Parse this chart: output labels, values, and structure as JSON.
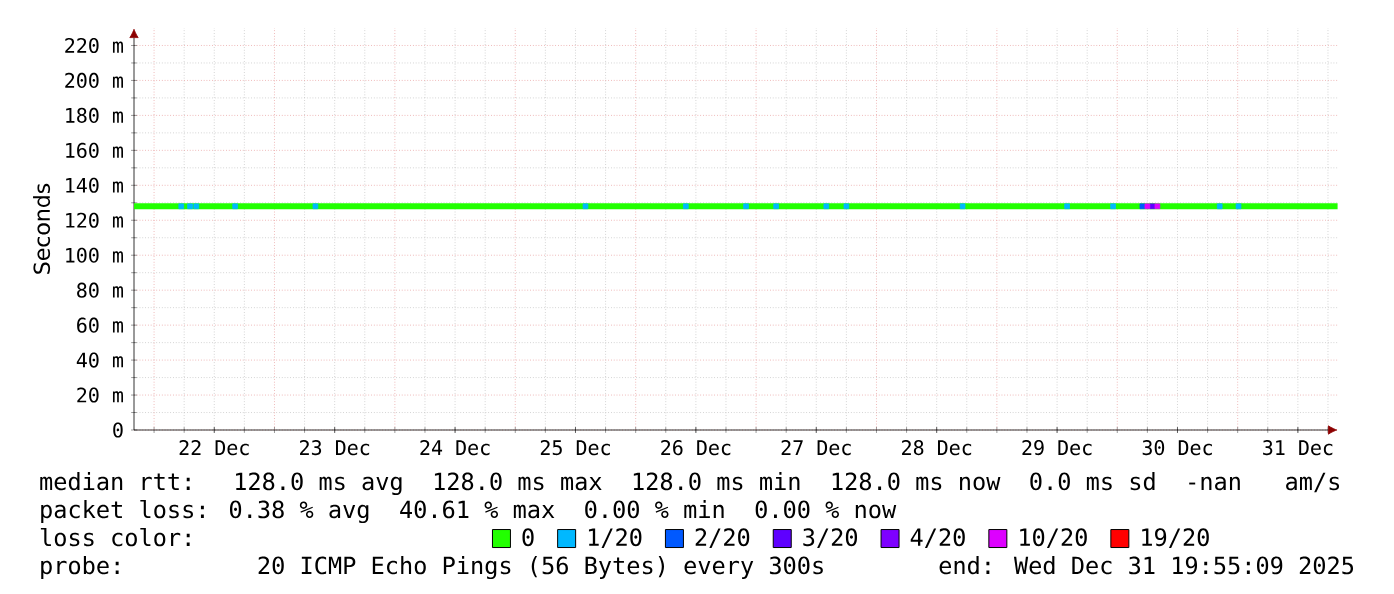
{
  "chart_data": {
    "type": "line",
    "ylabel": "Seconds",
    "legend_title": "loss color:",
    "xlim": [
      "2025-12-21T20:00",
      "2025-12-31T20:00"
    ],
    "xticks": [
      {
        "value": "2025-12-22T12:00",
        "label": "22 Dec"
      },
      {
        "value": "2025-12-23T12:00",
        "label": "23 Dec"
      },
      {
        "value": "2025-12-24T12:00",
        "label": "24 Dec"
      },
      {
        "value": "2025-12-25T12:00",
        "label": "25 Dec"
      },
      {
        "value": "2025-12-26T12:00",
        "label": "26 Dec"
      },
      {
        "value": "2025-12-27T12:00",
        "label": "27 Dec"
      },
      {
        "value": "2025-12-28T12:00",
        "label": "28 Dec"
      },
      {
        "value": "2025-12-29T12:00",
        "label": "29 Dec"
      },
      {
        "value": "2025-12-30T12:00",
        "label": "30 Dec"
      },
      {
        "value": "2025-12-31T12:00",
        "label": "31 Dec"
      }
    ],
    "ylim": [
      0,
      230
    ],
    "yticks": [
      0,
      {
        "value": 20,
        "label": "20 m"
      },
      {
        "value": 40,
        "label": "40 m"
      },
      {
        "value": 60,
        "label": "60 m"
      },
      {
        "value": 80,
        "label": "80 m"
      },
      {
        "value": 100,
        "label": "100 m"
      },
      {
        "value": 120,
        "label": "120 m"
      },
      {
        "value": 140,
        "label": "140 m"
      },
      {
        "value": 160,
        "label": "160 m"
      },
      {
        "value": 180,
        "label": "180 m"
      },
      {
        "value": 200,
        "label": "200 m"
      },
      {
        "value": 220,
        "label": "220 m"
      }
    ],
    "grid": true,
    "legend": "bottom",
    "series": [
      {
        "name": "0",
        "marker": "none",
        "color": "#22ff00",
        "x": [
          "2025-12-21T20:00",
          "2025-12-31T19:55"
        ],
        "values": [
          128,
          128
        ]
      },
      {
        "name": "1/20",
        "type": "scatter",
        "marker": "square",
        "color": "#00b8ff",
        "x": [
          "2025-12-22T05:25",
          "2025-12-22T07:10",
          "2025-12-22T08:25",
          "2025-12-22T16:10",
          "2025-12-23T08:10",
          "2025-12-25T14:00",
          "2025-12-26T10:00",
          "2025-12-26T22:00",
          "2025-12-27T04:00",
          "2025-12-27T14:00",
          "2025-12-27T18:00",
          "2025-12-28T17:10",
          "2025-12-29T14:00",
          "2025-12-29T23:10",
          "2025-12-30T20:25",
          "2025-12-31T00:10"
        ],
        "values": [
          128,
          128,
          128,
          128,
          128,
          128,
          128,
          128,
          128,
          128,
          128,
          128,
          128,
          128,
          128,
          128
        ]
      },
      {
        "name": "2/20",
        "type": "scatter",
        "marker": "square",
        "color": "#0059ff",
        "x": [
          "2025-12-30T05:00"
        ],
        "values": [
          128
        ]
      },
      {
        "name": "3/20",
        "type": "scatter",
        "marker": "square",
        "color": "#5e00ff",
        "x": [
          "2025-12-30T07:00"
        ],
        "values": [
          128
        ]
      },
      {
        "name": "4/20",
        "type": "scatter",
        "marker": "square",
        "color": "#7e00ff"
      },
      {
        "name": "10/20",
        "type": "scatter",
        "marker": "square",
        "color": "#dd00ff",
        "x": [
          "2025-12-30T06:00",
          "2025-12-30T08:00"
        ],
        "values": [
          128,
          128
        ]
      },
      {
        "name": "19/20",
        "type": "scatter",
        "marker": "square",
        "color": "#ff0000"
      }
    ],
    "annotations": [
      "median rtt:  128.0 ms avg  128.0 ms max  128.0 ms min  128.0 ms now  0.0 ms sd  -nan   am/s",
      "packet loss: 0.38 % avg  40.61 % max  0.00 % min  0.00 % now",
      "probe:       20 ICMP Echo Pings (56 Bytes) every 300s",
      "end: Wed Dec 31 19:55:09 2025"
    ]
  }
}
